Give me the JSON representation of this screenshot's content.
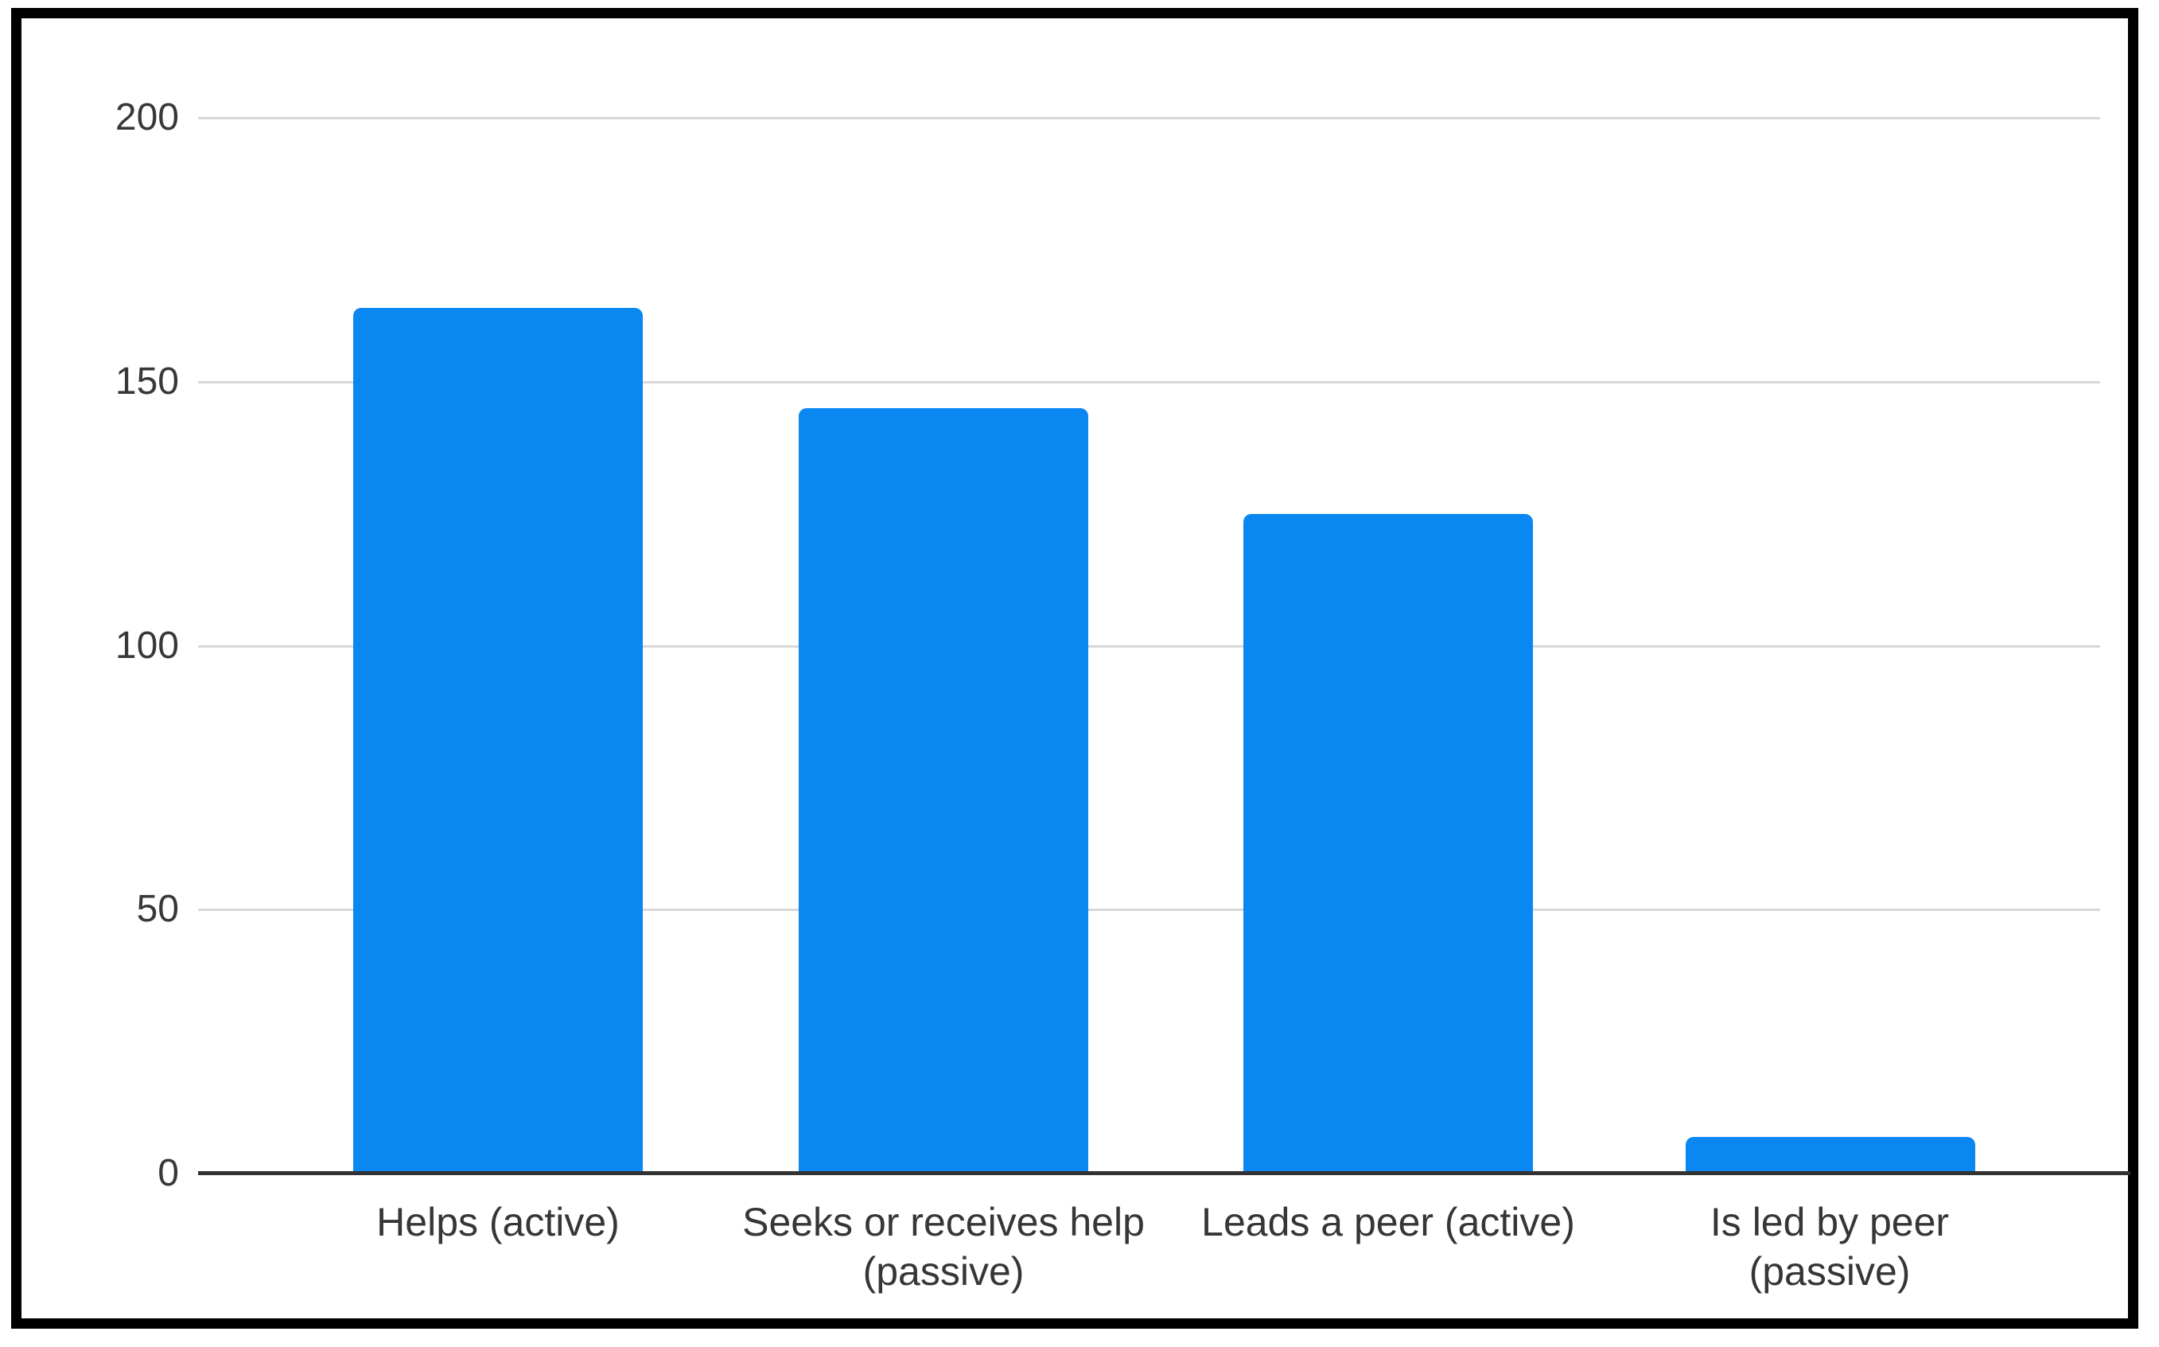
{
  "chart_data": {
    "type": "bar",
    "title": "",
    "xlabel": "",
    "ylabel": "",
    "categories": [
      "Helps (active)",
      "Seeks or receives help (passive)",
      "Leads a peer (active)",
      "Is led by peer (passive)"
    ],
    "values": [
      164,
      145,
      125,
      7
    ],
    "ylim": [
      0,
      200
    ],
    "yticks": [
      0,
      50,
      100,
      150,
      200
    ],
    "ytick_labels_top_to_bottom": [
      "200",
      "150",
      "100",
      "50",
      "0"
    ],
    "grid": true,
    "legend": "none",
    "bar_color": "#0a87f0",
    "gridline_color": "#d8d8d8",
    "axis_line_color": "#323232",
    "label_color": "#363636",
    "frame_border_color": "#000000"
  }
}
